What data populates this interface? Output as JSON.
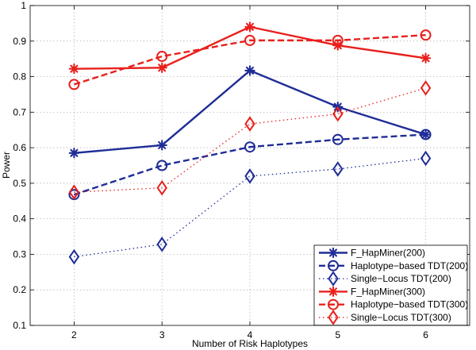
{
  "chart_data": {
    "type": "line",
    "title": "",
    "xlabel": "Number of Risk Haplotypes",
    "ylabel": "Power",
    "xlim": [
      1.5,
      6.5
    ],
    "ylim": [
      0.1,
      1.0
    ],
    "x": [
      2,
      3,
      4,
      5,
      6
    ],
    "xticks": [
      "2",
      "3",
      "4",
      "5",
      "6"
    ],
    "yticks": [
      "0.1",
      "0.2",
      "0.3",
      "0.4",
      "0.5",
      "0.6",
      "0.7",
      "0.8",
      "0.9",
      "1"
    ],
    "grid": true,
    "legend_position": "bottom-right",
    "series": [
      {
        "name": "F_HapMiner(200)",
        "color": "#1f2d96",
        "line": "solid",
        "marker": "asterisk",
        "values": [
          0.585,
          0.607,
          0.817,
          0.715,
          0.637
        ]
      },
      {
        "name": "Haplotype−based TDT(200)",
        "color": "#1f2d96",
        "line": "dashed",
        "marker": "circle",
        "values": [
          0.468,
          0.55,
          0.602,
          0.623,
          0.637
        ]
      },
      {
        "name": "Single−Locus TDT(200)",
        "color": "#1f2d96",
        "line": "dotted",
        "marker": "diamond",
        "values": [
          0.293,
          0.328,
          0.52,
          0.54,
          0.57
        ]
      },
      {
        "name": "F_HapMiner(300)",
        "color": "#e8201c",
        "line": "solid",
        "marker": "asterisk",
        "values": [
          0.822,
          0.825,
          0.94,
          0.888,
          0.852
        ]
      },
      {
        "name": "Haplotype−based TDT(300)",
        "color": "#e8201c",
        "line": "dashed",
        "marker": "circle",
        "values": [
          0.778,
          0.857,
          0.902,
          0.902,
          0.917
        ]
      },
      {
        "name": "Single−Locus TDT(300)",
        "color": "#e8201c",
        "line": "dotted",
        "marker": "diamond",
        "values": [
          0.475,
          0.487,
          0.667,
          0.695,
          0.768
        ]
      }
    ]
  }
}
